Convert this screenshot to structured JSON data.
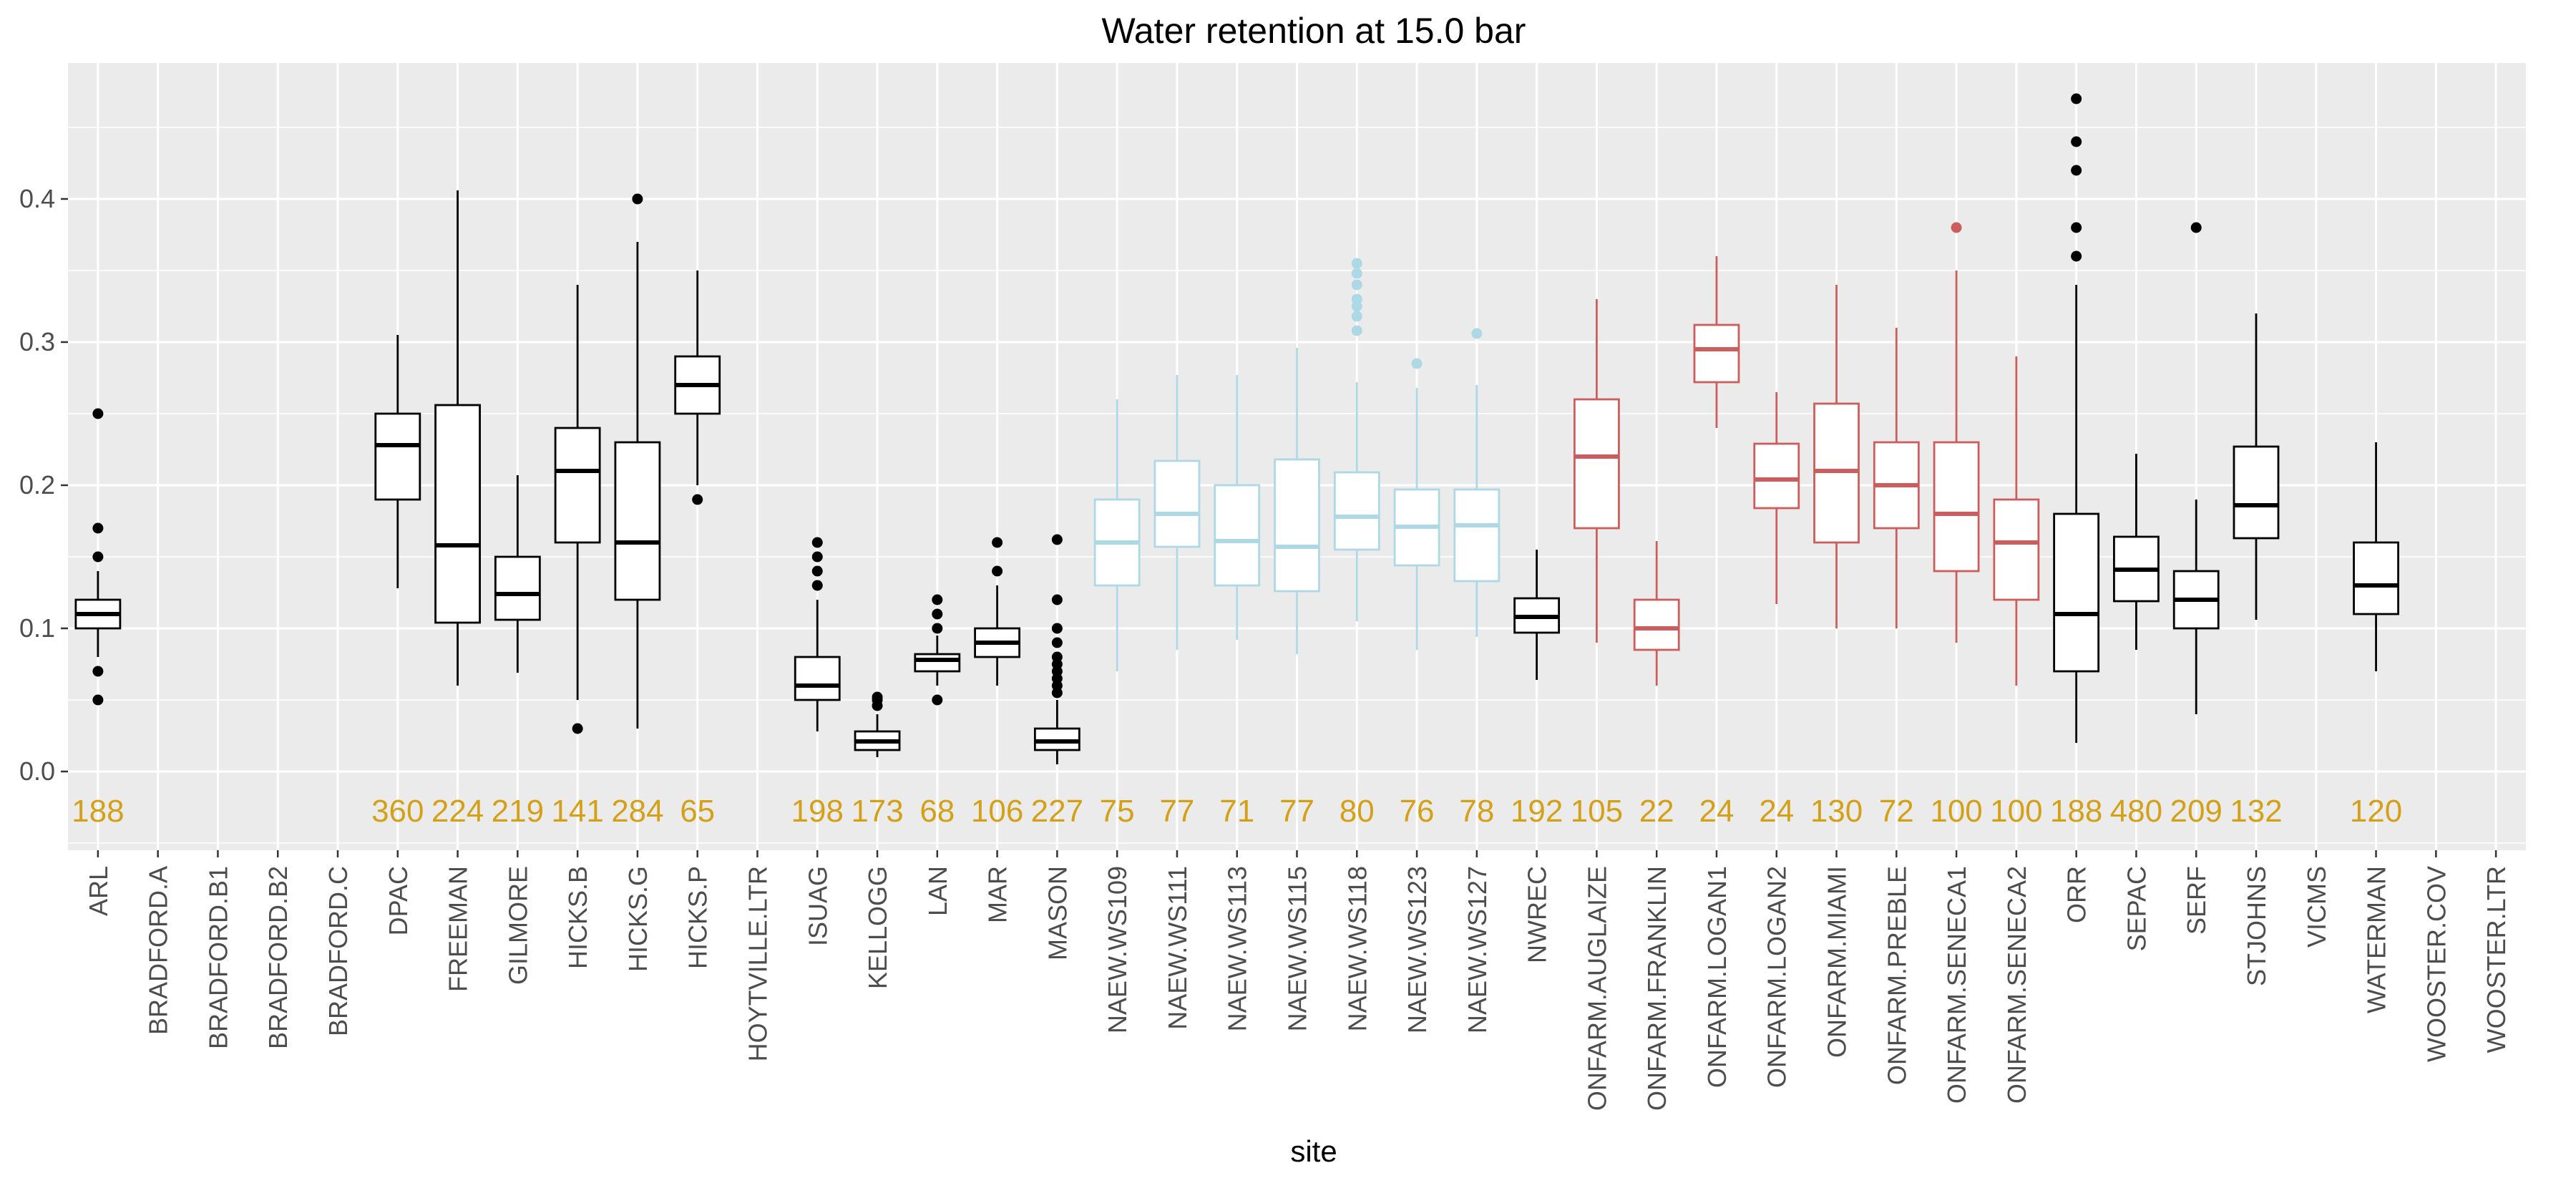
{
  "chart_data": {
    "type": "box",
    "title": "Water retention at 15.0 bar",
    "xlabel": "site",
    "ylabel": "",
    "ylim": [
      -0.055,
      0.495
    ],
    "yticks": [
      0.0,
      0.1,
      0.2,
      0.3,
      0.4
    ],
    "ytick_labels": [
      "0.0",
      "0.1",
      "0.2",
      "0.3",
      "0.4"
    ],
    "grid": true,
    "colors": {
      "black": "#000000",
      "blue": "#add8e6",
      "red": "#cd5c5c",
      "count": "#d4a017",
      "panel": "#ebebeb",
      "grid": "#ffffff"
    },
    "categories": [
      "ARL",
      "BRADFORD.A",
      "BRADFORD.B1",
      "BRADFORD.B2",
      "BRADFORD.C",
      "DPAC",
      "FREEMAN",
      "GILMORE",
      "HICKS.B",
      "HICKS.G",
      "HICKS.P",
      "HOYTVILLE.LTR",
      "ISUAG",
      "KELLOGG",
      "LAN",
      "MAR",
      "MASON",
      "NAEW.WS109",
      "NAEW.WS111",
      "NAEW.WS113",
      "NAEW.WS115",
      "NAEW.WS118",
      "NAEW.WS123",
      "NAEW.WS127",
      "NWREC",
      "ONFARM.AUGLAIZE",
      "ONFARM.FRANKLIN",
      "ONFARM.LOGAN1",
      "ONFARM.LOGAN2",
      "ONFARM.MIAMI",
      "ONFARM.PREBLE",
      "ONFARM.SENECA1",
      "ONFARM.SENECA2",
      "ORR",
      "SEPAC",
      "SERF",
      "STJOHNS",
      "VICMS",
      "WATERMAN",
      "WOOSTER.COV",
      "WOOSTER.LTR"
    ],
    "boxes": [
      {
        "site": "ARL",
        "n": "188",
        "color": "black",
        "whislo": 0.08,
        "q1": 0.1,
        "med": 0.11,
        "q3": 0.12,
        "whishi": 0.14,
        "outliers": [
          0.25,
          0.17,
          0.15,
          0.07,
          0.05
        ]
      },
      null,
      null,
      null,
      null,
      {
        "site": "DPAC",
        "n": "360",
        "color": "black",
        "whislo": 0.128,
        "q1": 0.19,
        "med": 0.228,
        "q3": 0.25,
        "whishi": 0.305,
        "outliers": []
      },
      {
        "site": "FREEMAN",
        "n": "224",
        "color": "black",
        "whislo": 0.06,
        "q1": 0.104,
        "med": 0.158,
        "q3": 0.256,
        "whishi": 0.406,
        "outliers": []
      },
      {
        "site": "GILMORE",
        "n": "219",
        "color": "black",
        "whislo": 0.069,
        "q1": 0.106,
        "med": 0.124,
        "q3": 0.15,
        "whishi": 0.207,
        "outliers": []
      },
      {
        "site": "HICKS.B",
        "n": "141",
        "color": "black",
        "whislo": 0.05,
        "q1": 0.16,
        "med": 0.21,
        "q3": 0.24,
        "whishi": 0.34,
        "outliers": [
          0.03
        ]
      },
      {
        "site": "HICKS.G",
        "n": "284",
        "color": "black",
        "whislo": 0.03,
        "q1": 0.12,
        "med": 0.16,
        "q3": 0.23,
        "whishi": 0.37,
        "outliers": [
          0.4
        ]
      },
      {
        "site": "HICKS.P",
        "n": "65",
        "color": "black",
        "whislo": 0.2,
        "q1": 0.25,
        "med": 0.27,
        "q3": 0.29,
        "whishi": 0.35,
        "outliers": [
          0.19
        ]
      },
      null,
      {
        "site": "ISUAG",
        "n": "198",
        "color": "black",
        "whislo": 0.028,
        "q1": 0.05,
        "med": 0.06,
        "q3": 0.08,
        "whishi": 0.12,
        "outliers": [
          0.16,
          0.15,
          0.14,
          0.13
        ]
      },
      {
        "site": "KELLOGG",
        "n": "173",
        "color": "black",
        "whislo": 0.01,
        "q1": 0.015,
        "med": 0.021,
        "q3": 0.028,
        "whishi": 0.04,
        "outliers": [
          0.046,
          0.05,
          0.052
        ]
      },
      {
        "site": "LAN",
        "n": "68",
        "color": "black",
        "whislo": 0.06,
        "q1": 0.07,
        "med": 0.078,
        "q3": 0.082,
        "whishi": 0.095,
        "outliers": [
          0.12,
          0.11,
          0.1,
          0.05
        ]
      },
      {
        "site": "MAR",
        "n": "106",
        "color": "black",
        "whislo": 0.06,
        "q1": 0.08,
        "med": 0.09,
        "q3": 0.1,
        "whishi": 0.13,
        "outliers": [
          0.16,
          0.14
        ]
      },
      {
        "site": "MASON",
        "n": "227",
        "color": "black",
        "whislo": 0.005,
        "q1": 0.015,
        "med": 0.021,
        "q3": 0.03,
        "whishi": 0.05,
        "outliers": [
          0.055,
          0.06,
          0.065,
          0.07,
          0.075,
          0.08,
          0.09,
          0.1,
          0.12,
          0.162
        ]
      },
      {
        "site": "NAEW.WS109",
        "n": "75",
        "color": "blue",
        "whislo": 0.07,
        "q1": 0.13,
        "med": 0.16,
        "q3": 0.19,
        "whishi": 0.26,
        "outliers": []
      },
      {
        "site": "NAEW.WS111",
        "n": "77",
        "color": "blue",
        "whislo": 0.085,
        "q1": 0.157,
        "med": 0.18,
        "q3": 0.217,
        "whishi": 0.277,
        "outliers": []
      },
      {
        "site": "NAEW.WS113",
        "n": "71",
        "color": "blue",
        "whislo": 0.092,
        "q1": 0.13,
        "med": 0.161,
        "q3": 0.2,
        "whishi": 0.277,
        "outliers": []
      },
      {
        "site": "NAEW.WS115",
        "n": "77",
        "color": "blue",
        "whislo": 0.082,
        "q1": 0.126,
        "med": 0.157,
        "q3": 0.218,
        "whishi": 0.296,
        "outliers": []
      },
      {
        "site": "NAEW.WS118",
        "n": "80",
        "color": "blue",
        "whislo": 0.105,
        "q1": 0.155,
        "med": 0.178,
        "q3": 0.209,
        "whishi": 0.272,
        "outliers": [
          0.308,
          0.318,
          0.325,
          0.33,
          0.34,
          0.348,
          0.355
        ]
      },
      {
        "site": "NAEW.WS123",
        "n": "76",
        "color": "blue",
        "whislo": 0.085,
        "q1": 0.144,
        "med": 0.171,
        "q3": 0.197,
        "whishi": 0.268,
        "outliers": [
          0.285
        ]
      },
      {
        "site": "NAEW.WS127",
        "n": "78",
        "color": "blue",
        "whislo": 0.094,
        "q1": 0.133,
        "med": 0.172,
        "q3": 0.197,
        "whishi": 0.27,
        "outliers": [
          0.306
        ]
      },
      {
        "site": "NWREC",
        "n": "192",
        "color": "black",
        "whislo": 0.064,
        "q1": 0.097,
        "med": 0.108,
        "q3": 0.121,
        "whishi": 0.155,
        "outliers": []
      },
      {
        "site": "ONFARM.AUGLAIZE",
        "n": "105",
        "color": "red",
        "whislo": 0.09,
        "q1": 0.17,
        "med": 0.22,
        "q3": 0.26,
        "whishi": 0.33,
        "outliers": []
      },
      {
        "site": "ONFARM.FRANKLIN",
        "n": "22",
        "color": "red",
        "whislo": 0.06,
        "q1": 0.085,
        "med": 0.1,
        "q3": 0.12,
        "whishi": 0.161,
        "outliers": []
      },
      {
        "site": "ONFARM.LOGAN1",
        "n": "24",
        "color": "red",
        "whislo": 0.24,
        "q1": 0.272,
        "med": 0.295,
        "q3": 0.312,
        "whishi": 0.36,
        "outliers": []
      },
      {
        "site": "ONFARM.LOGAN2",
        "n": "24",
        "color": "red",
        "whislo": 0.117,
        "q1": 0.184,
        "med": 0.204,
        "q3": 0.229,
        "whishi": 0.265,
        "outliers": []
      },
      {
        "site": "ONFARM.MIAMI",
        "n": "130",
        "color": "red",
        "whislo": 0.1,
        "q1": 0.16,
        "med": 0.21,
        "q3": 0.257,
        "whishi": 0.34,
        "outliers": []
      },
      {
        "site": "ONFARM.PREBLE",
        "n": "72",
        "color": "red",
        "whislo": 0.1,
        "q1": 0.17,
        "med": 0.2,
        "q3": 0.23,
        "whishi": 0.31,
        "outliers": []
      },
      {
        "site": "ONFARM.SENECA1",
        "n": "100",
        "color": "red",
        "whislo": 0.09,
        "q1": 0.14,
        "med": 0.18,
        "q3": 0.23,
        "whishi": 0.35,
        "outliers": [
          0.38
        ]
      },
      {
        "site": "ONFARM.SENECA2",
        "n": "100",
        "color": "red",
        "whislo": 0.06,
        "q1": 0.12,
        "med": 0.16,
        "q3": 0.19,
        "whishi": 0.29,
        "outliers": []
      },
      {
        "site": "ORR",
        "n": "188",
        "color": "black",
        "whislo": 0.02,
        "q1": 0.07,
        "med": 0.11,
        "q3": 0.18,
        "whishi": 0.34,
        "outliers": [
          0.47,
          0.44,
          0.42,
          0.38,
          0.36
        ]
      },
      {
        "site": "SEPAC",
        "n": "480",
        "color": "black",
        "whislo": 0.085,
        "q1": 0.119,
        "med": 0.141,
        "q3": 0.164,
        "whishi": 0.222,
        "outliers": []
      },
      {
        "site": "SERF",
        "n": "209",
        "color": "black",
        "whislo": 0.04,
        "q1": 0.1,
        "med": 0.12,
        "q3": 0.14,
        "whishi": 0.19,
        "outliers": [
          0.38
        ]
      },
      {
        "site": "STJOHNS",
        "n": "132",
        "color": "black",
        "whislo": 0.106,
        "q1": 0.163,
        "med": 0.186,
        "q3": 0.227,
        "whishi": 0.32,
        "outliers": []
      },
      null,
      {
        "site": "WATERMAN",
        "n": "120",
        "color": "black",
        "whislo": 0.07,
        "q1": 0.11,
        "med": 0.13,
        "q3": 0.16,
        "whishi": 0.23,
        "outliers": []
      },
      null,
      null
    ],
    "count_y": -0.027
  }
}
